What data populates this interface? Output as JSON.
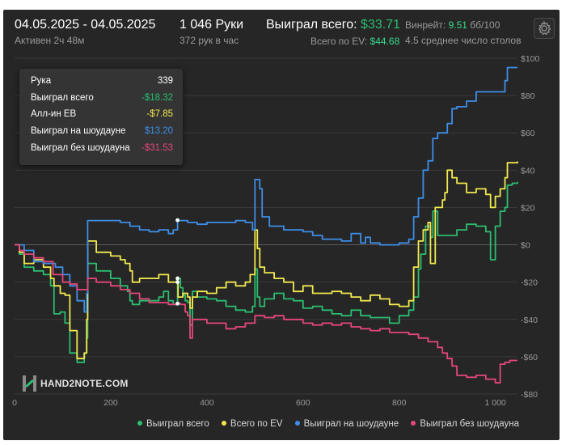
{
  "header": {
    "date_range": "04.05.2025 - 04.05.2025",
    "active": "Активен 2ч 48м",
    "hands": "1 046 Руки",
    "hands_per_hour": "372 рук в час",
    "won_total_label": "Выиграл всего:",
    "won_total_value": "$33.71",
    "ev_label": "Всего по EV:",
    "ev_value": "$44.68",
    "winrate_label": "Винрейт:",
    "winrate_value": "9.51",
    "winrate_unit": "бб/100",
    "avg_tables": "4.5 среднее число столов"
  },
  "tooltip": {
    "rows": [
      {
        "label": "Рука",
        "value": "339",
        "color": "#ffffff"
      },
      {
        "label": "Выиграл всего",
        "value": "-$18.32",
        "color": "#2bbd70"
      },
      {
        "label": "Алл-ин ЕВ",
        "value": "-$7.85",
        "color": "#f2e94e"
      },
      {
        "label": "Выиграл на шоудауне",
        "value": "$13.20",
        "color": "#3d8ee8"
      },
      {
        "label": "Выиграл без шоудауна",
        "value": "-$31.53",
        "color": "#e5477a"
      }
    ]
  },
  "logo_text": "HAND2NOTE.COM",
  "settings_icon": "gear-icon",
  "chart_data": {
    "type": "line",
    "xlim": [
      0,
      1046
    ],
    "ylim": [
      -80,
      100
    ],
    "x_ticks": [
      0,
      200,
      400,
      600,
      800,
      1000
    ],
    "x_tick_labels": [
      "0",
      "200",
      "400",
      "600",
      "800",
      "1 000"
    ],
    "y_ticks": [
      100,
      80,
      60,
      40,
      20,
      0,
      -20,
      -40,
      -60,
      -80
    ],
    "y_tick_labels": [
      "$100",
      "$80",
      "$60",
      "$40",
      "$20",
      "$0",
      "-$20",
      "-$40",
      "-$60",
      "-$80"
    ],
    "grid": true,
    "legend": "bottom",
    "series": [
      {
        "name": "Выиграл всего",
        "color": "#2bbd70",
        "points": [
          [
            0,
            0
          ],
          [
            10,
            -5
          ],
          [
            20,
            -12
          ],
          [
            40,
            -14
          ],
          [
            60,
            -16
          ],
          [
            75,
            -22
          ],
          [
            82,
            -37
          ],
          [
            95,
            -36
          ],
          [
            105,
            -42
          ],
          [
            115,
            -58
          ],
          [
            130,
            -63
          ],
          [
            145,
            -58
          ],
          [
            150,
            -50
          ],
          [
            152,
            -10
          ],
          [
            170,
            -14
          ],
          [
            200,
            -18
          ],
          [
            220,
            -22
          ],
          [
            235,
            -25
          ],
          [
            240,
            -30
          ],
          [
            245,
            -32
          ],
          [
            260,
            -30
          ],
          [
            300,
            -28
          ],
          [
            310,
            -25
          ],
          [
            320,
            -30
          ],
          [
            330,
            -32
          ],
          [
            338,
            -31
          ],
          [
            339,
            -18
          ],
          [
            345,
            -23
          ],
          [
            350,
            -27
          ],
          [
            355,
            -30
          ],
          [
            360,
            -31
          ],
          [
            365,
            -43
          ],
          [
            370,
            -25
          ],
          [
            380,
            -28
          ],
          [
            400,
            -29
          ],
          [
            420,
            -30
          ],
          [
            440,
            -33
          ],
          [
            460,
            -35
          ],
          [
            480,
            -36
          ],
          [
            495,
            -33
          ],
          [
            500,
            -13
          ],
          [
            505,
            -28
          ],
          [
            510,
            -33
          ],
          [
            520,
            -29
          ],
          [
            540,
            -26
          ],
          [
            560,
            -29
          ],
          [
            580,
            -30
          ],
          [
            600,
            -34
          ],
          [
            620,
            -33
          ],
          [
            640,
            -35
          ],
          [
            660,
            -37
          ],
          [
            680,
            -38
          ],
          [
            700,
            -35
          ],
          [
            720,
            -38
          ],
          [
            740,
            -39
          ],
          [
            760,
            -39
          ],
          [
            780,
            -42
          ],
          [
            800,
            -38
          ],
          [
            820,
            -35
          ],
          [
            830,
            -28
          ],
          [
            840,
            -13
          ],
          [
            845,
            -5
          ],
          [
            855,
            10
          ],
          [
            865,
            4
          ],
          [
            870,
            18
          ],
          [
            880,
            5
          ],
          [
            900,
            5
          ],
          [
            920,
            8
          ],
          [
            940,
            11
          ],
          [
            960,
            10
          ],
          [
            980,
            7
          ],
          [
            990,
            -8
          ],
          [
            1000,
            10
          ],
          [
            1010,
            18
          ],
          [
            1020,
            20
          ],
          [
            1025,
            32
          ],
          [
            1035,
            33
          ],
          [
            1046,
            33.71
          ]
        ]
      },
      {
        "name": "Всего по EV",
        "color": "#f2e94e",
        "points": [
          [
            0,
            0
          ],
          [
            10,
            -4
          ],
          [
            20,
            -10
          ],
          [
            40,
            -8
          ],
          [
            60,
            -12
          ],
          [
            75,
            -18
          ],
          [
            82,
            -22
          ],
          [
            95,
            -26
          ],
          [
            105,
            -27
          ],
          [
            115,
            -46
          ],
          [
            130,
            -61
          ],
          [
            145,
            -58
          ],
          [
            150,
            -40
          ],
          [
            152,
            2
          ],
          [
            170,
            -4
          ],
          [
            200,
            -6
          ],
          [
            220,
            -8
          ],
          [
            230,
            -10
          ],
          [
            240,
            -14
          ],
          [
            245,
            -20
          ],
          [
            260,
            -18
          ],
          [
            300,
            -16
          ],
          [
            320,
            -20
          ],
          [
            340,
            -28
          ],
          [
            350,
            -26
          ],
          [
            360,
            -28
          ],
          [
            365,
            -34
          ],
          [
            370,
            -28
          ],
          [
            380,
            -25
          ],
          [
            400,
            -26
          ],
          [
            420,
            -23
          ],
          [
            440,
            -20
          ],
          [
            460,
            -22
          ],
          [
            480,
            -20
          ],
          [
            490,
            -16
          ],
          [
            500,
            8
          ],
          [
            505,
            -2
          ],
          [
            510,
            -12
          ],
          [
            520,
            -15
          ],
          [
            540,
            -18
          ],
          [
            560,
            -20
          ],
          [
            580,
            -25
          ],
          [
            600,
            -22
          ],
          [
            620,
            -26
          ],
          [
            640,
            -26
          ],
          [
            660,
            -25
          ],
          [
            680,
            -26
          ],
          [
            700,
            -28
          ],
          [
            720,
            -30
          ],
          [
            740,
            -27
          ],
          [
            760,
            -29
          ],
          [
            780,
            -32
          ],
          [
            800,
            -33
          ],
          [
            820,
            -30
          ],
          [
            830,
            -12
          ],
          [
            840,
            2
          ],
          [
            850,
            8
          ],
          [
            860,
            12
          ],
          [
            865,
            -10
          ],
          [
            875,
            20
          ],
          [
            880,
            20
          ],
          [
            890,
            24
          ],
          [
            895,
            28
          ],
          [
            900,
            40
          ],
          [
            910,
            36
          ],
          [
            920,
            33
          ],
          [
            940,
            28
          ],
          [
            960,
            30
          ],
          [
            980,
            27
          ],
          [
            990,
            20
          ],
          [
            1000,
            26
          ],
          [
            1010,
            30
          ],
          [
            1020,
            36
          ],
          [
            1025,
            44
          ],
          [
            1035,
            44
          ],
          [
            1046,
            44.68
          ]
        ]
      },
      {
        "name": "Выиграл на шоудауне",
        "color": "#3d8ee8",
        "points": [
          [
            0,
            0
          ],
          [
            20,
            -3
          ],
          [
            40,
            -9
          ],
          [
            60,
            -10
          ],
          [
            75,
            -10
          ],
          [
            85,
            -12
          ],
          [
            100,
            -16
          ],
          [
            115,
            -22
          ],
          [
            130,
            -30
          ],
          [
            145,
            -36
          ],
          [
            150,
            -26
          ],
          [
            152,
            13
          ],
          [
            200,
            13
          ],
          [
            220,
            12
          ],
          [
            240,
            10
          ],
          [
            260,
            8
          ],
          [
            280,
            7
          ],
          [
            300,
            8
          ],
          [
            320,
            6
          ],
          [
            330,
            8
          ],
          [
            339,
            13.2
          ],
          [
            340,
            13
          ],
          [
            360,
            12
          ],
          [
            380,
            11
          ],
          [
            400,
            12
          ],
          [
            420,
            12
          ],
          [
            440,
            12
          ],
          [
            460,
            13
          ],
          [
            480,
            12
          ],
          [
            495,
            8
          ],
          [
            500,
            35
          ],
          [
            510,
            30
          ],
          [
            515,
            15
          ],
          [
            530,
            10
          ],
          [
            560,
            8
          ],
          [
            580,
            8
          ],
          [
            600,
            7
          ],
          [
            620,
            5
          ],
          [
            640,
            3
          ],
          [
            660,
            3
          ],
          [
            680,
            2
          ],
          [
            700,
            6
          ],
          [
            720,
            1
          ],
          [
            730,
            4
          ],
          [
            740,
            1
          ],
          [
            760,
            0
          ],
          [
            780,
            0
          ],
          [
            800,
            1
          ],
          [
            820,
            3
          ],
          [
            830,
            15
          ],
          [
            840,
            25
          ],
          [
            850,
            40
          ],
          [
            860,
            45
          ],
          [
            870,
            57
          ],
          [
            880,
            60
          ],
          [
            900,
            65
          ],
          [
            910,
            73
          ],
          [
            920,
            74
          ],
          [
            940,
            77
          ],
          [
            960,
            82
          ],
          [
            980,
            82
          ],
          [
            1000,
            82
          ],
          [
            1010,
            82
          ],
          [
            1020,
            88
          ],
          [
            1025,
            95
          ],
          [
            1046,
            95
          ]
        ]
      },
      {
        "name": "Выиграл без шоудауна",
        "color": "#e5477a",
        "points": [
          [
            0,
            0
          ],
          [
            10,
            -3
          ],
          [
            20,
            -5
          ],
          [
            40,
            -7
          ],
          [
            60,
            -9
          ],
          [
            80,
            -16
          ],
          [
            100,
            -20
          ],
          [
            115,
            -21
          ],
          [
            130,
            -24
          ],
          [
            150,
            -24
          ],
          [
            152,
            -18
          ],
          [
            170,
            -20
          ],
          [
            200,
            -22
          ],
          [
            220,
            -24
          ],
          [
            240,
            -26
          ],
          [
            260,
            -29
          ],
          [
            280,
            -31
          ],
          [
            300,
            -31
          ],
          [
            320,
            -32
          ],
          [
            335,
            -32
          ],
          [
            339,
            -31.53
          ],
          [
            345,
            -32
          ],
          [
            355,
            -36
          ],
          [
            360,
            -38
          ],
          [
            365,
            -50
          ],
          [
            370,
            -40
          ],
          [
            380,
            -40
          ],
          [
            400,
            -42
          ],
          [
            420,
            -42
          ],
          [
            440,
            -45
          ],
          [
            460,
            -44
          ],
          [
            480,
            -42
          ],
          [
            500,
            -38
          ],
          [
            520,
            -39
          ],
          [
            540,
            -38
          ],
          [
            560,
            -40
          ],
          [
            580,
            -40
          ],
          [
            600,
            -42
          ],
          [
            620,
            -43
          ],
          [
            640,
            -42
          ],
          [
            660,
            -43
          ],
          [
            680,
            -42
          ],
          [
            700,
            -44
          ],
          [
            720,
            -45
          ],
          [
            740,
            -46
          ],
          [
            760,
            -45
          ],
          [
            780,
            -47
          ],
          [
            800,
            -47
          ],
          [
            820,
            -48
          ],
          [
            840,
            -50
          ],
          [
            860,
            -52
          ],
          [
            880,
            -55
          ],
          [
            890,
            -58
          ],
          [
            900,
            -61
          ],
          [
            910,
            -65
          ],
          [
            920,
            -70
          ],
          [
            940,
            -71
          ],
          [
            960,
            -70
          ],
          [
            980,
            -72
          ],
          [
            1000,
            -74
          ],
          [
            1010,
            -64
          ],
          [
            1020,
            -63
          ],
          [
            1030,
            -62
          ],
          [
            1046,
            -62
          ]
        ]
      }
    ],
    "hover_x": 339
  }
}
